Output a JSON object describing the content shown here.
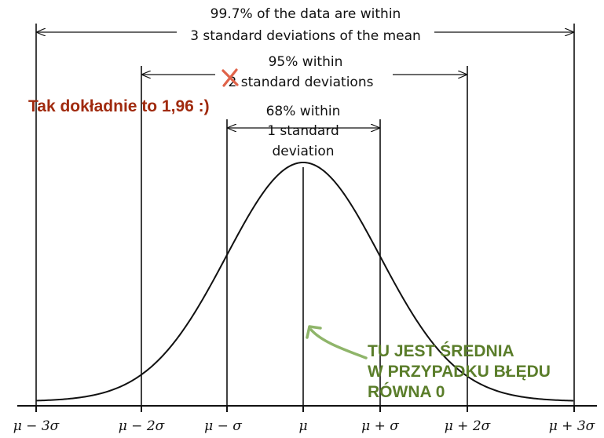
{
  "colors": {
    "ink": "#111111",
    "note_red": "#a02a0e",
    "cross_red": "#e0634a",
    "note_green": "#5a7d2a"
  },
  "labels": {
    "l997_line1": "99.7% of the data are within",
    "l997_line2": "3 standard deviations of the mean",
    "l95_line1": "95% within",
    "l95_line2": "2 standard deviations",
    "l68_line1": "68% within",
    "l68_line2": "1 standard",
    "l68_line3": "deviation"
  },
  "annotations": {
    "red_note": "Tak dokładnie to 1,96 :)",
    "green_note_line1": "TU JEST ŚREDNIA",
    "green_note_line2": "W PRZYPADKU BŁĘDU",
    "green_note_line3": "RÓWNA 0",
    "crossed_out_icon": "x-mark-icon",
    "pointer_icon": "curved-arrow-icon"
  },
  "axis": {
    "ticks": [
      "μ − 3σ",
      "μ − 2σ",
      "μ − σ",
      "μ",
      "μ + σ",
      "μ + 2σ",
      "μ + 3σ"
    ]
  }
}
